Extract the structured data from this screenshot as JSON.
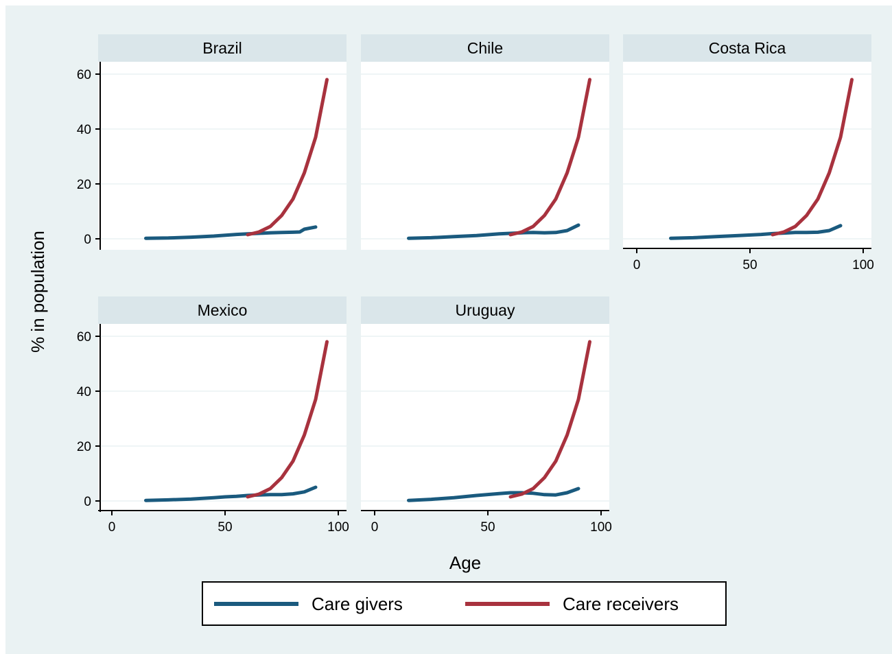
{
  "chart_data": {
    "type": "line",
    "ylabel": "% in population",
    "xlabel": "Age",
    "xlim": [
      0,
      100
    ],
    "ylim": [
      0,
      60
    ],
    "x_ticks": [
      0,
      50,
      100
    ],
    "y_ticks": [
      0,
      20,
      40,
      60
    ],
    "grid": true,
    "legend_position": "bottom",
    "legend": [
      {
        "label": "Care givers",
        "color": "#1a5a7e"
      },
      {
        "label": "Care receivers",
        "color": "#a8323e"
      }
    ],
    "panels": [
      {
        "title": "Brazil",
        "series": [
          {
            "name": "Care givers",
            "color": "#1a5a7e",
            "x": [
              15,
              25,
              35,
              45,
              55,
              60,
              65,
              70,
              75,
              80,
              83,
              85,
              90
            ],
            "y": [
              0.2,
              0.3,
              0.6,
              1.0,
              1.6,
              1.8,
              2.0,
              2.2,
              2.3,
              2.4,
              2.5,
              3.5,
              4.3
            ]
          },
          {
            "name": "Care receivers",
            "color": "#a8323e",
            "x": [
              60,
              65,
              70,
              75,
              80,
              85,
              90,
              95
            ],
            "y": [
              1.5,
              2.5,
              4.5,
              8.5,
              14.5,
              24,
              37,
              58
            ]
          }
        ]
      },
      {
        "title": "Chile",
        "series": [
          {
            "name": "Care givers",
            "color": "#1a5a7e",
            "x": [
              15,
              25,
              35,
              45,
              55,
              60,
              65,
              70,
              75,
              80,
              85,
              90
            ],
            "y": [
              0.2,
              0.4,
              0.8,
              1.2,
              1.8,
              2.0,
              2.2,
              2.3,
              2.2,
              2.3,
              3.0,
              5.0
            ]
          },
          {
            "name": "Care receivers",
            "color": "#a8323e",
            "x": [
              60,
              65,
              70,
              75,
              80,
              85,
              90,
              95
            ],
            "y": [
              1.5,
              2.5,
              4.5,
              8.5,
              14.5,
              24,
              37,
              58
            ]
          }
        ]
      },
      {
        "title": "Costa Rica",
        "series": [
          {
            "name": "Care givers",
            "color": "#1a5a7e",
            "x": [
              15,
              25,
              35,
              45,
              55,
              60,
              65,
              70,
              75,
              80,
              85,
              90
            ],
            "y": [
              0.2,
              0.4,
              0.8,
              1.2,
              1.6,
              1.9,
              2.1,
              2.3,
              2.3,
              2.4,
              3.0,
              4.8
            ]
          },
          {
            "name": "Care receivers",
            "color": "#a8323e",
            "x": [
              60,
              65,
              70,
              75,
              80,
              85,
              90,
              95
            ],
            "y": [
              1.5,
              2.5,
              4.5,
              8.5,
              14.5,
              24,
              37,
              58
            ]
          }
        ]
      },
      {
        "title": "Mexico",
        "series": [
          {
            "name": "Care givers",
            "color": "#1a5a7e",
            "x": [
              15,
              25,
              35,
              45,
              50,
              55,
              60,
              65,
              70,
              75,
              80,
              85,
              90
            ],
            "y": [
              0.2,
              0.4,
              0.7,
              1.2,
              1.5,
              1.7,
              2.0,
              2.2,
              2.3,
              2.3,
              2.6,
              3.3,
              5.0
            ]
          },
          {
            "name": "Care receivers",
            "color": "#a8323e",
            "x": [
              60,
              65,
              70,
              75,
              80,
              85,
              90,
              95
            ],
            "y": [
              1.5,
              2.5,
              4.5,
              8.5,
              14.5,
              24,
              37,
              58
            ]
          }
        ]
      },
      {
        "title": "Uruguay",
        "series": [
          {
            "name": "Care givers",
            "color": "#1a5a7e",
            "x": [
              15,
              25,
              35,
              45,
              55,
              60,
              65,
              70,
              75,
              80,
              85,
              90
            ],
            "y": [
              0.2,
              0.6,
              1.2,
              2.0,
              2.7,
              3.0,
              3.0,
              2.8,
              2.3,
              2.2,
              3.0,
              4.5
            ]
          },
          {
            "name": "Care receivers",
            "color": "#a8323e",
            "x": [
              60,
              65,
              70,
              75,
              80,
              85,
              90,
              95
            ],
            "y": [
              1.5,
              2.5,
              4.5,
              8.5,
              14.5,
              24,
              37,
              58
            ]
          }
        ]
      }
    ]
  },
  "colors": {
    "background": "#eaf2f3",
    "plot_background": "#ffffff",
    "strip_background": "#dae6ea",
    "grid": "#eaf2f3"
  }
}
